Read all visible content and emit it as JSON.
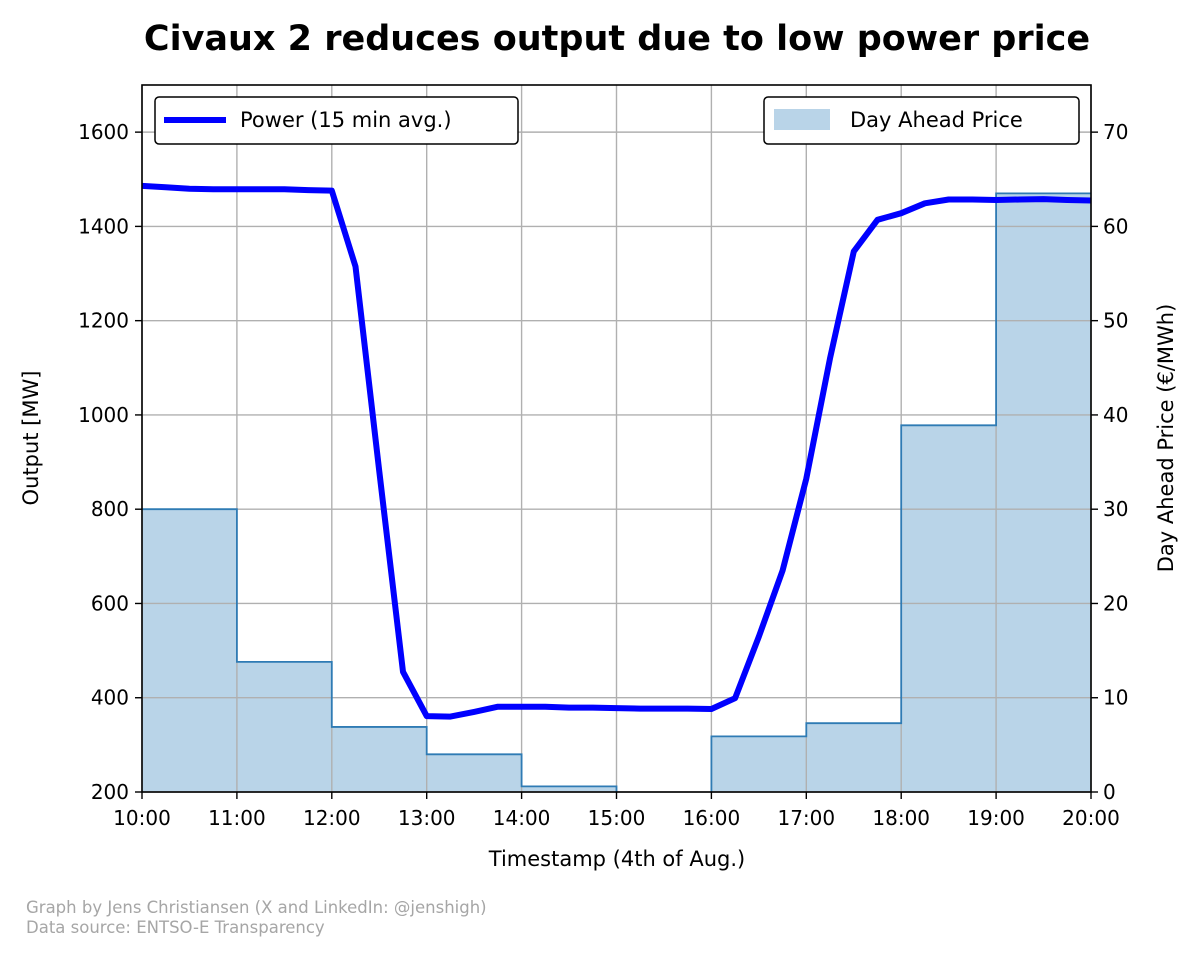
{
  "chart_data": {
    "type": "line",
    "title": "Civaux 2 reduces output due to low power price",
    "xlabel": "Timestamp (4th of Aug.)",
    "ylabel": "Output [MW]",
    "ylabel_right": "Day Ahead Price (€/MWh)",
    "x_ticks": [
      "10:00",
      "11:00",
      "12:00",
      "13:00",
      "14:00",
      "15:00",
      "16:00",
      "17:00",
      "18:00",
      "19:00",
      "20:00"
    ],
    "xlim": [
      "10:00",
      "20:00"
    ],
    "ylim": [
      200,
      1700
    ],
    "y_ticks": [
      200,
      400,
      600,
      800,
      1000,
      1200,
      1400,
      1600
    ],
    "ylim_right": [
      0,
      75
    ],
    "y_ticks_right": [
      0,
      10,
      20,
      30,
      40,
      50,
      60,
      70
    ],
    "grid": true,
    "series": [
      {
        "name": "Power (15 min avg.)",
        "type": "line",
        "axis": "left",
        "color": "#0000ff",
        "x": [
          "10:00",
          "10:15",
          "10:30",
          "10:45",
          "11:00",
          "11:15",
          "11:30",
          "11:45",
          "12:00",
          "12:15",
          "12:30",
          "12:45",
          "13:00",
          "13:15",
          "13:30",
          "13:45",
          "14:00",
          "14:15",
          "14:30",
          "14:45",
          "15:00",
          "15:15",
          "15:30",
          "15:45",
          "16:00",
          "16:15",
          "16:30",
          "16:45",
          "17:00",
          "17:15",
          "17:30",
          "17:45",
          "18:00",
          "18:15",
          "18:30",
          "18:45",
          "19:00",
          "19:15",
          "19:30",
          "19:45",
          "20:00"
        ],
        "y": [
          1486,
          1483,
          1480,
          1479,
          1479,
          1479,
          1479,
          1477,
          1476,
          1315,
          880,
          455,
          361,
          360,
          370,
          381,
          381,
          381,
          379,
          379,
          378,
          377,
          377,
          377,
          376,
          399,
          530,
          670,
          865,
          1120,
          1347,
          1414,
          1428,
          1449,
          1457,
          1457,
          1456,
          1457,
          1458,
          1456,
          1455
        ]
      },
      {
        "name": "Day Ahead Price",
        "type": "step-area",
        "axis": "right",
        "color": "#b9d4e8",
        "edge_color": "#2f7bb4",
        "x": [
          "10:00",
          "11:00",
          "12:00",
          "13:00",
          "14:00",
          "15:00",
          "16:00",
          "17:00",
          "18:00",
          "19:00"
        ],
        "y": [
          30.0,
          13.8,
          6.9,
          4.0,
          0.6,
          -0.6,
          5.9,
          7.3,
          38.9,
          63.5
        ]
      }
    ],
    "legend": [
      {
        "label": "Power (15 min avg.)",
        "placement": "top-left"
      },
      {
        "label": "Day Ahead Price",
        "placement": "top-right"
      }
    ]
  },
  "credits": {
    "line1": "Graph by Jens Christiansen (X and LinkedIn: @jenshigh)",
    "line2": "Data source: ENTSO-E Transparency"
  }
}
